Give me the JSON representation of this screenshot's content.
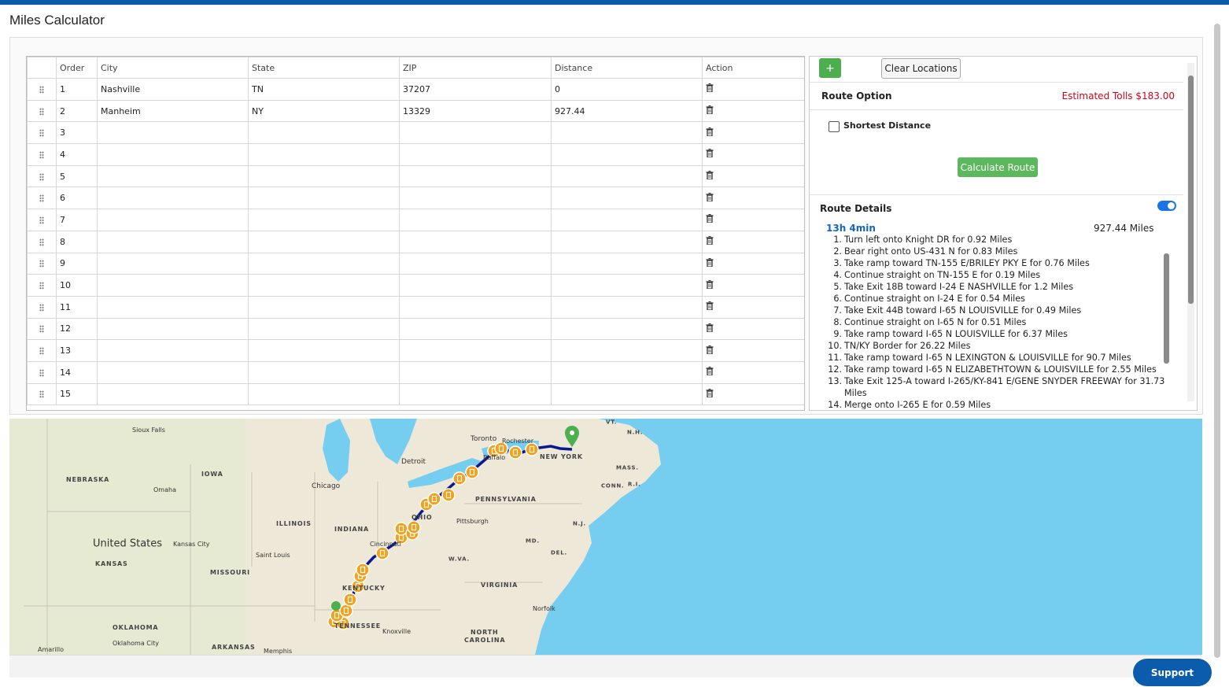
{
  "header": {
    "title": "Miles Calculator"
  },
  "table": {
    "headers": [
      "Order",
      "City",
      "State",
      "ZIP",
      "Distance",
      "Action"
    ],
    "rows": [
      {
        "order": 1,
        "city": "Nashville",
        "state": "TN",
        "zip": "37207",
        "distance": 0
      },
      {
        "order": 2,
        "city": "Manheim",
        "state": "NY",
        "zip": "13329",
        "distance": 927.44
      },
      {
        "order": 3
      },
      {
        "order": 4
      },
      {
        "order": 5
      },
      {
        "order": 6
      },
      {
        "order": 7
      },
      {
        "order": 8
      },
      {
        "order": 9
      },
      {
        "order": 10
      },
      {
        "order": 11
      },
      {
        "order": 12
      },
      {
        "order": 13
      },
      {
        "order": 14
      },
      {
        "order": 15
      }
    ]
  },
  "panel": {
    "add_button": "+",
    "clear_button": "Clear Locations",
    "route_option": "Route Option",
    "tolls": "Estimated Tolls $183.00",
    "shortest": "Shortest Distance",
    "calculate_button": "Calculate Route",
    "route_details": "Route Details",
    "duration": "13h 4min",
    "total_distance": "927.44 Miles",
    "steps": [
      {
        "n": "1.",
        "text": "Turn left onto Knight DR for 0.92 Miles"
      },
      {
        "n": "2.",
        "text": "Bear right onto US-431 N for 0.83 Miles"
      },
      {
        "n": "3.",
        "text": "Take ramp toward TN-155 E/BRILEY PKY E for 0.76 Miles"
      },
      {
        "n": "4.",
        "text": "Continue straight on TN-155 E for 0.19 Miles"
      },
      {
        "n": "5.",
        "text": "Take Exit 18B toward I-24 E NASHVILLE for 1.2 Miles"
      },
      {
        "n": "6.",
        "text": "Continue straight on I-24 E for 0.54 Miles"
      },
      {
        "n": "7.",
        "text": "Take Exit 44B toward I-65 N LOUISVILLE for 0.49 Miles"
      },
      {
        "n": "8.",
        "text": "Continue straight on I-65 N for 0.51 Miles"
      },
      {
        "n": "9.",
        "text": "Take ramp toward I-65 N LOUISVILLE for 6.37 Miles"
      },
      {
        "n": "10.",
        "text": "TN/KY Border for 26.22 Miles"
      },
      {
        "n": "11.",
        "text": "Take ramp toward I-65 N LEXINGTON & LOUISVILLE for 90.7 Miles"
      },
      {
        "n": "12.",
        "text": "Take ramp toward I-65 N ELIZABETHTOWN & LOUISVILLE for 2.55 Miles"
      },
      {
        "n": "13.",
        "text": "Take Exit 125-A toward I-265/KY-841 E/GENE SNYDER FREEWAY for 31.73 Miles"
      },
      {
        "n": "14.",
        "text": "Merge onto I-265 E for 0.59 Miles"
      }
    ]
  },
  "map": {
    "labels": [
      "Sioux Falls",
      "Toronto",
      "Rochester",
      "Detroit",
      "Buffalo",
      "NEW YORK",
      "VT.",
      "N.H.",
      "MASS.",
      "CONN.",
      "R.I.",
      "NEBRASKA",
      "IOWA",
      "Omaha",
      "Chicago",
      "PENNSYLVANIA",
      "OHIO",
      "Pittsburgh",
      "N.J.",
      "ILLINOIS",
      "INDIANA",
      "United States",
      "Kansas City",
      "Cincinnati",
      "MD.",
      "DEL.",
      "KANSAS",
      "Saint Louis",
      "W.VA.",
      "MISSOURI",
      "KENTUCKY",
      "VIRGINIA",
      "Norfolk",
      "OKLAHOMA",
      "TENNESSEE",
      "Knoxville",
      "NORTH",
      "CAROLINA",
      "Oklahoma City",
      "Amarillo",
      "ARKANSAS",
      "Memphis"
    ]
  },
  "support": "Support"
}
